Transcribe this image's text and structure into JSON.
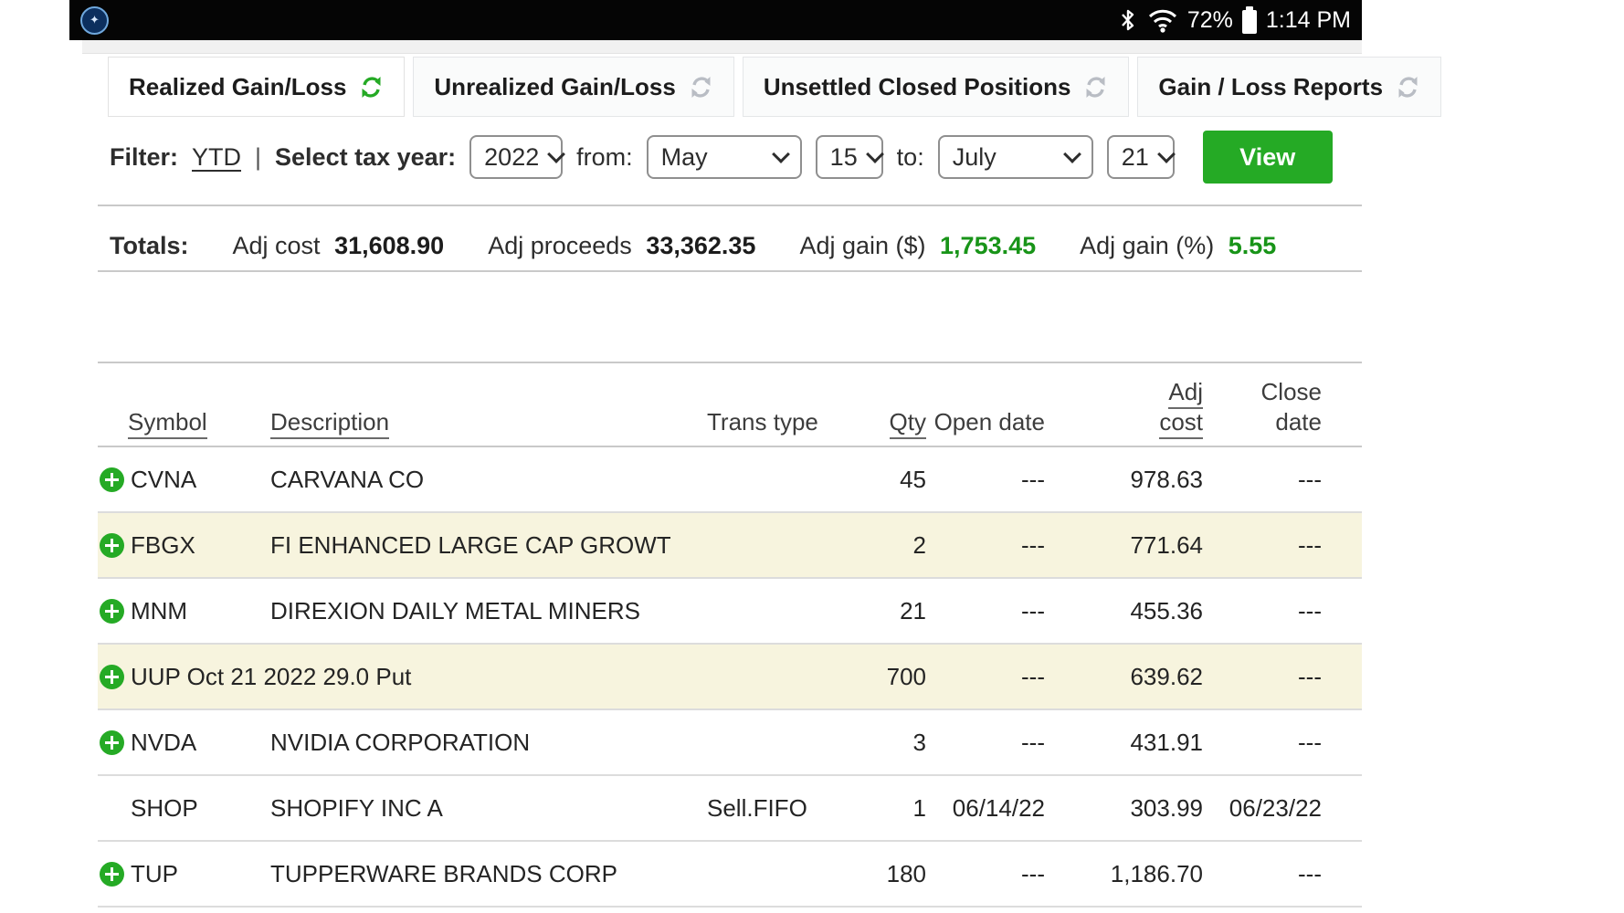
{
  "status_bar": {
    "battery_pct": "72%",
    "time": "1:14 PM"
  },
  "tabs": [
    {
      "label": "Realized Gain/Loss",
      "active": true
    },
    {
      "label": "Unrealized Gain/Loss",
      "active": false
    },
    {
      "label": "Unsettled Closed Positions",
      "active": false
    },
    {
      "label": "Gain / Loss Reports",
      "active": false
    }
  ],
  "filter": {
    "label": "Filter:",
    "ytd_link": "YTD",
    "separator": "|",
    "tax_year_label": "Select tax year:",
    "tax_year_value": "2022",
    "from_label": "from:",
    "from_month_value": "May",
    "from_day_value": "15",
    "to_label": "to:",
    "to_month_value": "July",
    "to_day_value": "21",
    "view_button_label": "View"
  },
  "totals": {
    "label": "Totals:",
    "items": [
      {
        "label": "Adj cost",
        "value": "31,608.90",
        "highlight": false
      },
      {
        "label": "Adj proceeds",
        "value": "33,362.35",
        "highlight": false
      },
      {
        "label": "Adj gain ($)",
        "value": "1,753.45",
        "highlight": true
      },
      {
        "label": "Adj gain (%)",
        "value": "5.55",
        "highlight": true
      }
    ]
  },
  "table": {
    "columns": [
      {
        "label": "Symbol",
        "underline": true,
        "align": "left"
      },
      {
        "label": "Description",
        "underline": true,
        "align": "left"
      },
      {
        "label": "Trans type",
        "underline": false,
        "align": "left"
      },
      {
        "label": "Qty",
        "underline": true,
        "align": "right"
      },
      {
        "label": "Open date",
        "underline": false,
        "align": "right"
      },
      {
        "label": "Adj cost",
        "underline": true,
        "align": "right",
        "lines": [
          "Adj",
          "cost"
        ]
      },
      {
        "label": "Close date",
        "underline": false,
        "align": "right",
        "lines": [
          "Close",
          "date"
        ]
      }
    ],
    "rows": [
      {
        "expand": true,
        "symbol": "CVNA",
        "description": "CARVANA CO",
        "trans_type": "",
        "qty": "45",
        "open_date": "---",
        "adj_cost": "978.63",
        "close_date": "---",
        "shaded": false
      },
      {
        "expand": true,
        "symbol": "FBGX",
        "description": "FI ENHANCED LARGE CAP GROWT",
        "trans_type": "",
        "qty": "2",
        "open_date": "---",
        "adj_cost": "771.64",
        "close_date": "---",
        "shaded": true
      },
      {
        "expand": true,
        "symbol": "MNM",
        "description": "DIREXION DAILY METAL MINERS",
        "trans_type": "",
        "qty": "21",
        "open_date": "---",
        "adj_cost": "455.36",
        "close_date": "---",
        "shaded": false
      },
      {
        "expand": true,
        "symbol": "UUP Oct 21 2022 29.0 Put",
        "description": "",
        "trans_type": "",
        "qty": "700",
        "open_date": "---",
        "adj_cost": "639.62",
        "close_date": "---",
        "shaded": true
      },
      {
        "expand": true,
        "symbol": "NVDA",
        "description": "NVIDIA CORPORATION",
        "trans_type": "",
        "qty": "3",
        "open_date": "---",
        "adj_cost": "431.91",
        "close_date": "---",
        "shaded": false
      },
      {
        "expand": false,
        "symbol": "SHOP",
        "description": "SHOPIFY INC A",
        "trans_type": "Sell.FIFO",
        "qty": "1",
        "open_date": "06/14/22",
        "adj_cost": "303.99",
        "close_date": "06/23/22",
        "shaded": false
      },
      {
        "expand": true,
        "symbol": "TUP",
        "description": "TUPPERWARE BRANDS CORP",
        "trans_type": "",
        "qty": "180",
        "open_date": "---",
        "adj_cost": "1,186.70",
        "close_date": "---",
        "shaded": false
      }
    ]
  },
  "colors": {
    "accent_green": "#25aa25",
    "gain_green": "#189418",
    "row_shade": "#f7f4de",
    "inactive_icon": "#b9bdc4",
    "status_bar_bg": "#050505"
  }
}
